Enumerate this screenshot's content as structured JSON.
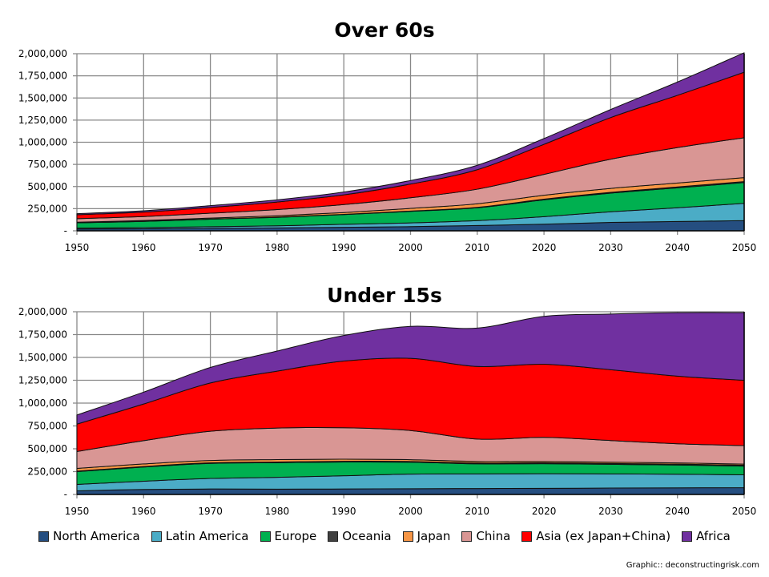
{
  "chart_data": [
    {
      "type": "area",
      "stacked": true,
      "title": "Over 60s",
      "x": [
        1950,
        1960,
        1970,
        1980,
        1990,
        2000,
        2010,
        2020,
        2030,
        2040,
        2050
      ],
      "ylim": [
        0,
        2000000
      ],
      "yticks": [
        "-",
        "250,000",
        "500,000",
        "750,000",
        "1,000,000",
        "1,250,000",
        "1,500,000",
        "1,750,000",
        "2,000,000"
      ],
      "xticks": [
        "1950",
        "1960",
        "1970",
        "1980",
        "1990",
        "2000",
        "2010",
        "2020",
        "2030",
        "2040",
        "2050"
      ],
      "grid": true,
      "series": [
        {
          "name": "North America",
          "values": [
            20000,
            23000,
            28000,
            33000,
            40000,
            47000,
            60000,
            75000,
            95000,
            105000,
            115000
          ]
        },
        {
          "name": "Latin America",
          "values": [
            10000,
            13000,
            18000,
            24000,
            33000,
            42000,
            55000,
            85000,
            120000,
            155000,
            195000
          ]
        },
        {
          "name": "Europe",
          "values": [
            60000,
            70000,
            85000,
            95000,
            110000,
            130000,
            145000,
            190000,
            210000,
            225000,
            235000
          ]
        },
        {
          "name": "Oceania",
          "values": [
            1000,
            2000,
            2000,
            3000,
            3000,
            4000,
            5000,
            7000,
            9000,
            10000,
            11000
          ]
        },
        {
          "name": "Japan",
          "values": [
            6000,
            8000,
            11000,
            15000,
            20000,
            30000,
            40000,
            45000,
            45000,
            45000,
            45000
          ]
        },
        {
          "name": "China",
          "values": [
            40000,
            45000,
            55000,
            70000,
            90000,
            120000,
            165000,
            235000,
            330000,
            400000,
            450000
          ]
        },
        {
          "name": "Asia (ex Japan+China)",
          "values": [
            45000,
            50000,
            65000,
            85000,
            110000,
            155000,
            220000,
            340000,
            470000,
            590000,
            740000
          ]
        },
        {
          "name": "Africa",
          "values": [
            12000,
            15000,
            20000,
            25000,
            32000,
            40000,
            50000,
            65000,
            91000,
            150000,
            220000
          ]
        }
      ]
    },
    {
      "type": "area",
      "stacked": true,
      "title": "Under 15s",
      "x": [
        1950,
        1960,
        1970,
        1980,
        1990,
        2000,
        2010,
        2020,
        2030,
        2040,
        2050
      ],
      "ylim": [
        0,
        2000000
      ],
      "yticks": [
        "-",
        "250,000",
        "500,000",
        "750,000",
        "1,000,000",
        "1,250,000",
        "1,500,000",
        "1,750,000",
        "2,000,000"
      ],
      "xticks": [
        "1950",
        "1960",
        "1970",
        "1980",
        "1990",
        "2000",
        "2010",
        "2020",
        "2030",
        "2040",
        "2050"
      ],
      "grid": true,
      "series": [
        {
          "name": "North America",
          "values": [
            40000,
            55000,
            60000,
            58000,
            60000,
            63000,
            65000,
            67000,
            70000,
            72000,
            75000
          ]
        },
        {
          "name": "Latin America",
          "values": [
            70000,
            90000,
            115000,
            130000,
            145000,
            160000,
            160000,
            160000,
            155000,
            150000,
            140000
          ]
        },
        {
          "name": "Europe",
          "values": [
            140000,
            155000,
            165000,
            160000,
            150000,
            130000,
            110000,
            110000,
            105000,
            100000,
            95000
          ]
        },
        {
          "name": "Oceania",
          "values": [
            5000,
            6000,
            7000,
            7000,
            8000,
            8000,
            9000,
            9000,
            9000,
            10000,
            10000
          ]
        },
        {
          "name": "Japan",
          "values": [
            30000,
            28000,
            25000,
            27000,
            23000,
            20000,
            17000,
            15000,
            14000,
            13000,
            12000
          ]
        },
        {
          "name": "China",
          "values": [
            185000,
            255000,
            320000,
            345000,
            344000,
            319000,
            245000,
            264000,
            237000,
            210000,
            203000
          ]
        },
        {
          "name": "Asia (ex Japan+China)",
          "values": [
            300000,
            401000,
            528000,
            623000,
            730000,
            790000,
            795000,
            800000,
            775000,
            740000,
            715000
          ]
        },
        {
          "name": "Africa",
          "values": [
            100000,
            130000,
            170000,
            220000,
            280000,
            350000,
            420000,
            525000,
            610000,
            695000,
            740000
          ]
        }
      ]
    }
  ],
  "legend": [
    {
      "label": "North America",
      "color": "#254E80"
    },
    {
      "label": "Latin America",
      "color": "#4BACC6"
    },
    {
      "label": "Europe",
      "color": "#00B050"
    },
    {
      "label": "Oceania",
      "color": "#404040"
    },
    {
      "label": "Japan",
      "color": "#F79646"
    },
    {
      "label": "China",
      "color": "#D99694"
    },
    {
      "label": "Asia (ex Japan+China)",
      "color": "#FF0000"
    },
    {
      "label": "Africa",
      "color": "#7030A0"
    }
  ],
  "credit": "Graphic:: deconstructingrisk.com"
}
